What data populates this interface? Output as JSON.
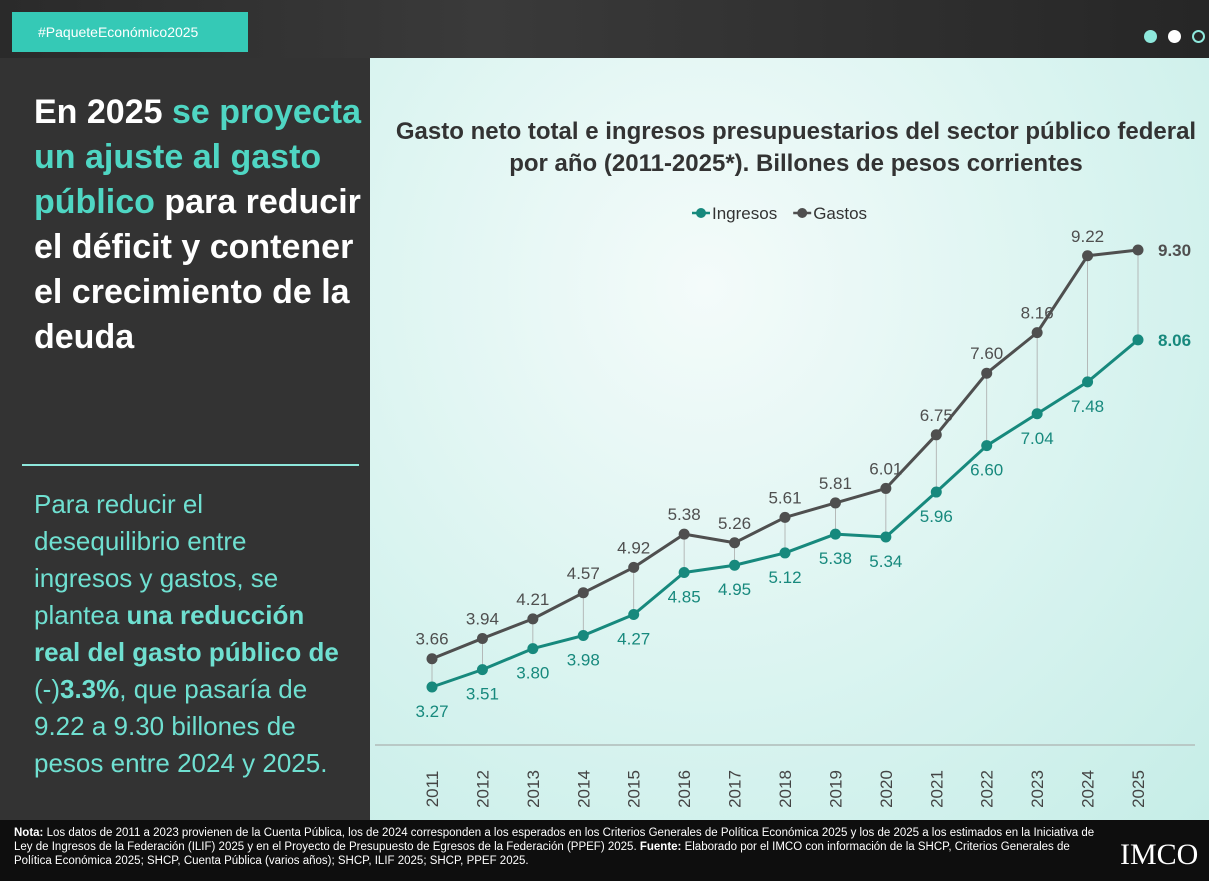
{
  "header": {
    "hashtag": "#PaqueteEconómico2025"
  },
  "headline": [
    {
      "text": "En 2025 ",
      "style": "plain"
    },
    {
      "text": "se proyecta un ajuste al gasto público",
      "style": "highlight"
    },
    {
      "text": " para reducir el déficit y contener el crecimiento de la deuda",
      "style": "plain"
    }
  ],
  "paragraph": [
    {
      "text": "Para reducir el desequilibrio entre ingresos y gastos, se plantea ",
      "style": "plain"
    },
    {
      "text": "una reducción real del gasto público de",
      "style": "bold"
    },
    {
      "text": " (-)",
      "style": "plain"
    },
    {
      "text": "3.3%",
      "style": "bold"
    },
    {
      "text": ", que pasaría de 9.22 a 9.30 billones de pesos entre 2024 y 2025.",
      "style": "plain"
    }
  ],
  "chart_data": {
    "type": "line",
    "title": "Gasto neto total e ingresos presupuestarios del sector público federal por año (2011-2025*). Billones de pesos corrientes",
    "categories": [
      "2011",
      "2012",
      "2013",
      "2014",
      "2015",
      "2016",
      "2017",
      "2018",
      "2019",
      "2020",
      "2021",
      "2022",
      "2023",
      "2024",
      "2025"
    ],
    "legend": "top",
    "series": [
      {
        "name": "Ingresos",
        "color": "#17897d",
        "values": [
          3.27,
          3.51,
          3.8,
          3.98,
          4.27,
          4.85,
          4.95,
          5.12,
          5.38,
          5.34,
          5.96,
          6.6,
          7.04,
          7.48,
          8.06
        ],
        "value_labels": [
          "3.27",
          "3.51",
          "3.80",
          "3.98",
          "4.27",
          "4.85",
          "4.95",
          "5.12",
          "5.38",
          "5.34",
          "5.96",
          "6.60",
          "7.04",
          "7.48",
          "8.06"
        ]
      },
      {
        "name": "Gastos",
        "color": "#4f4f4f",
        "values": [
          3.66,
          3.94,
          4.21,
          4.57,
          4.92,
          5.38,
          5.26,
          5.61,
          5.81,
          6.01,
          6.75,
          7.6,
          8.16,
          9.22,
          9.3
        ],
        "value_labels": [
          "3.66",
          "3.94",
          "4.21",
          "4.57",
          "4.92",
          "5.38",
          "5.26",
          "5.61",
          "5.81",
          "6.01",
          "6.75",
          "7.60",
          "8.16",
          "9.22",
          "9.30"
        ]
      }
    ]
  },
  "footer": {
    "note": [
      {
        "text": "Nota:",
        "style": "bold"
      },
      {
        "text": " Los datos de 2011 a 2023 provienen de la Cuenta Pública, los de 2024 corresponden a los esperados en los Criterios Generales de Política Económica 2025 y los de 2025 a los estimados en la Iniciativa de Ley de Ingresos de la Federación (ILIF) 2025 y en el Proyecto de Presupuesto de Egresos de la Federación (PPEF) 2025. ",
        "style": "plain"
      },
      {
        "text": "Fuente:",
        "style": "bold"
      },
      {
        "text": " Elaborado por el IMCO con información de la SHCP, Criterios Generales de Política Económica 2025; SHCP, Cuenta Pública (varios años); SHCP, ILIF 2025; SHCP, PPEF 2025.",
        "style": "plain"
      }
    ],
    "logo": "IMCO"
  }
}
